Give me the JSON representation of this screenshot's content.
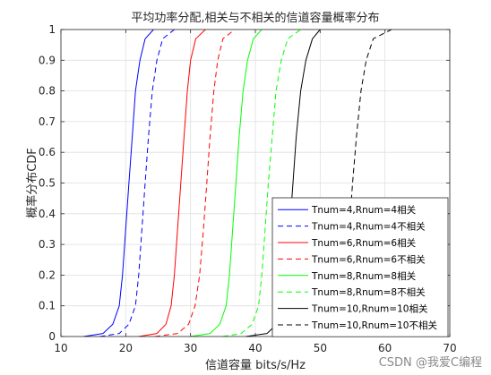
{
  "chart_data": {
    "type": "line",
    "title": "平均功率分配,相关与不相关的信道容量概率分布",
    "xlabel": "信道容量 bits/s/Hz",
    "ylabel": "概率分布CDF",
    "xlim": [
      10,
      70
    ],
    "ylim": [
      0,
      1
    ],
    "xticks": [
      "10",
      "20",
      "30",
      "40",
      "50",
      "60",
      "70"
    ],
    "yticks": [
      "0",
      "0.1",
      "0.2",
      "0.3",
      "0.4",
      "0.5",
      "0.6",
      "0.7",
      "0.8",
      "0.9",
      "1"
    ],
    "grid": true,
    "legend_position": "bottom-right",
    "series": [
      {
        "name": "Tnum=4,Rnum=4相关",
        "color": "#0000ff",
        "dash": "solid",
        "x": [
          13.5,
          16.5,
          18.0,
          19.0,
          19.5,
          20.0,
          20.5,
          21.0,
          21.5,
          22.2,
          23.0,
          24.3
        ],
        "y": [
          0.0,
          0.01,
          0.04,
          0.1,
          0.2,
          0.35,
          0.5,
          0.65,
          0.8,
          0.9,
          0.97,
          1.0
        ]
      },
      {
        "name": "Tnum=4,Rnum=4不相关",
        "color": "#0000ff",
        "dash": "dash",
        "x": [
          16.0,
          19.0,
          20.5,
          21.5,
          22.0,
          22.5,
          23.0,
          23.5,
          24.1,
          24.8,
          25.7,
          27.5
        ],
        "y": [
          0.0,
          0.01,
          0.04,
          0.1,
          0.2,
          0.35,
          0.5,
          0.65,
          0.8,
          0.9,
          0.97,
          1.0
        ]
      },
      {
        "name": "Tnum=6,Rnum=6相关",
        "color": "#ff0000",
        "dash": "solid",
        "x": [
          22.0,
          24.8,
          26.2,
          27.0,
          27.5,
          28.0,
          28.5,
          29.0,
          29.5,
          30.0,
          30.8,
          32.3
        ],
        "y": [
          0.0,
          0.01,
          0.04,
          0.1,
          0.2,
          0.35,
          0.5,
          0.65,
          0.8,
          0.9,
          0.97,
          1.0
        ]
      },
      {
        "name": "Tnum=6,Rnum=6不相关",
        "color": "#ff0000",
        "dash": "dash",
        "x": [
          24.5,
          28.0,
          29.7,
          30.7,
          31.4,
          32.0,
          32.5,
          33.0,
          33.6,
          34.2,
          35.0,
          36.8
        ],
        "y": [
          0.0,
          0.01,
          0.04,
          0.1,
          0.2,
          0.35,
          0.5,
          0.65,
          0.8,
          0.9,
          0.97,
          1.0
        ]
      },
      {
        "name": "Tnum=8,Rnum=8相关",
        "color": "#00ff00",
        "dash": "solid",
        "x": [
          30.0,
          33.0,
          34.5,
          35.5,
          36.0,
          36.5,
          37.0,
          37.5,
          38.1,
          38.8,
          39.7,
          41.0
        ],
        "y": [
          0.0,
          0.01,
          0.04,
          0.1,
          0.2,
          0.35,
          0.5,
          0.65,
          0.8,
          0.9,
          0.97,
          1.0
        ]
      },
      {
        "name": "Tnum=8,Rnum=8不相关",
        "color": "#00ff00",
        "dash": "dash",
        "x": [
          35.0,
          37.8,
          39.5,
          40.5,
          41.0,
          41.5,
          42.0,
          42.6,
          43.2,
          44.0,
          45.0,
          47.0
        ],
        "y": [
          0.0,
          0.01,
          0.04,
          0.1,
          0.2,
          0.35,
          0.5,
          0.65,
          0.8,
          0.9,
          0.97,
          1.0
        ]
      },
      {
        "name": "Tnum=10,Rnum=10相关",
        "color": "#000000",
        "dash": "solid",
        "x": [
          38.5,
          41.8,
          43.3,
          44.2,
          44.8,
          45.3,
          45.8,
          46.3,
          47.0,
          47.8,
          48.8,
          50.0
        ],
        "y": [
          0.0,
          0.01,
          0.04,
          0.1,
          0.2,
          0.35,
          0.5,
          0.65,
          0.8,
          0.9,
          0.97,
          1.0
        ]
      },
      {
        "name": "Tnum=10,Rnum=10不相关",
        "color": "#000000",
        "dash": "dash",
        "x": [
          49.0,
          51.0,
          52.5,
          53.4,
          54.0,
          54.5,
          55.0,
          55.6,
          56.3,
          57.1,
          58.2,
          61.0
        ],
        "y": [
          0.0,
          0.01,
          0.04,
          0.1,
          0.2,
          0.35,
          0.5,
          0.65,
          0.8,
          0.9,
          0.97,
          1.0
        ]
      }
    ]
  },
  "watermark": "CSDN @我爱C编程"
}
